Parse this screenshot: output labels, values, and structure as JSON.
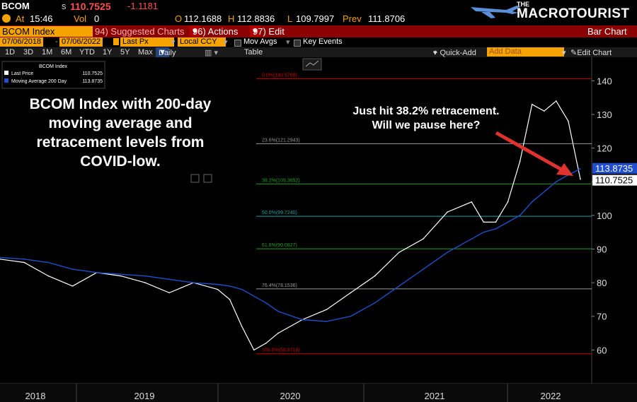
{
  "header": {
    "ticker": "BCOM",
    "s_label": "s",
    "price": "110.7525",
    "change": "-1.1181",
    "at_label": "At",
    "time": "15:46",
    "vol_label": "Vol",
    "vol": "0",
    "o_label": "O",
    "open": "112.1688",
    "h_label": "H",
    "high": "112.8836",
    "l_label": "L",
    "low": "109.7997",
    "prev_label": "Prev",
    "prev": "111.8706"
  },
  "logo": {
    "top": "THE",
    "name_a": "MACRO",
    "name_b": "TOURIST"
  },
  "toolbar": {
    "index_name": "BCOM Index",
    "suggested": "94) Suggested Charts",
    "actions": "96) Actions",
    "edit": "97) Edit",
    "bar_chart": "Bar Chart"
  },
  "range": {
    "start": "07/06/2018",
    "end": "07/06/2022",
    "field": "Last Px",
    "currency": "Local CCY",
    "mov_avgs": "Mov Avgs",
    "key_events": "Key Events"
  },
  "periods": {
    "items": [
      "1D",
      "3D",
      "1M",
      "6M",
      "YTD",
      "1Y",
      "5Y",
      "Max"
    ],
    "frequency": "Daily",
    "table": "Table",
    "quick_add": "+ Quick-Add",
    "add_data_placeholder": "Add Data",
    "edit_chart": "Edit Chart"
  },
  "legend": {
    "title": "BCOM Index",
    "last_price_label": "Last Price",
    "last_price_value": "110.7525",
    "ma_label": "Moving Average 200 Day",
    "ma_value": "113.8735"
  },
  "annotation": {
    "title_lines": [
      "BCOM Index with 200-day",
      "moving average and",
      "retracement levels from",
      "COVID-low."
    ],
    "note_lines": [
      "Just hit 38.2% retracement.",
      "Will we pause here?"
    ]
  },
  "colors": {
    "price": "#ffffff",
    "ma": "#1f4fcc",
    "fib_red": "#cc0000",
    "fib_green": "#1fa01f",
    "fib_grey": "#9a9a9a",
    "fib_teal": "#1aa0a0",
    "arrow": "#e0332f",
    "ma_tag": "#1f4fcc"
  },
  "chart_data": {
    "type": "line",
    "ylim": [
      50,
      147
    ],
    "yticks": [
      60,
      70,
      80,
      90,
      100,
      110,
      120,
      130,
      140
    ],
    "year_labels": [
      "2018",
      "2019",
      "2020",
      "2021",
      "2022"
    ],
    "last_price_tag": "110.7525",
    "ma_tag": "113.8735",
    "fib_levels": [
      {
        "pct": "0.0%",
        "value": 140.5769,
        "label": "0.0%(140.5769)",
        "color": "red"
      },
      {
        "pct": "23.6%",
        "value": 121.2943,
        "label": "23.6%(121.2943)",
        "color": "grey"
      },
      {
        "pct": "38.2%",
        "value": 109.3652,
        "label": "38.2%(109.3652)",
        "color": "green"
      },
      {
        "pct": "50.0%",
        "value": 99.724,
        "label": "50.0%(99.7240)",
        "color": "teal"
      },
      {
        "pct": "61.8%",
        "value": 90.0827,
        "label": "61.8%(90.0827)",
        "color": "green"
      },
      {
        "pct": "76.4%",
        "value": 78.1536,
        "label": "76.4%(78.1536)",
        "color": "grey"
      },
      {
        "pct": "100.0%",
        "value": 58.8718,
        "label": "100.0%(58.8718)",
        "color": "red"
      }
    ],
    "x": [
      "2018-07",
      "2018-09",
      "2018-11",
      "2019-01",
      "2019-03",
      "2019-05",
      "2019-07",
      "2019-09",
      "2019-11",
      "2020-01",
      "2020-02",
      "2020-03",
      "2020-04",
      "2020-05",
      "2020-06",
      "2020-08",
      "2020-10",
      "2020-12",
      "2021-02",
      "2021-04",
      "2021-06",
      "2021-08",
      "2021-10",
      "2021-11",
      "2021-12",
      "2022-01",
      "2022-02",
      "2022-03",
      "2022-04",
      "2022-05",
      "2022-06",
      "2022-07"
    ],
    "series": [
      {
        "name": "Last Price",
        "values": [
          87,
          86,
          82,
          79,
          83,
          82,
          80,
          77,
          80,
          78,
          75,
          67,
          60,
          62,
          65,
          69,
          72,
          77,
          82,
          89,
          93,
          101,
          104,
          98,
          98,
          104,
          116,
          133,
          131,
          134,
          128,
          110.75
        ]
      },
      {
        "name": "Moving Average 200 Day",
        "values": [
          87.5,
          87,
          86,
          84,
          83,
          82.5,
          82,
          81,
          80,
          79.5,
          79,
          78,
          76,
          74,
          71.5,
          69,
          68.5,
          70,
          74,
          79,
          84,
          89,
          93,
          95,
          96,
          98,
          100,
          104,
          107,
          110,
          112,
          113.87
        ]
      }
    ]
  }
}
